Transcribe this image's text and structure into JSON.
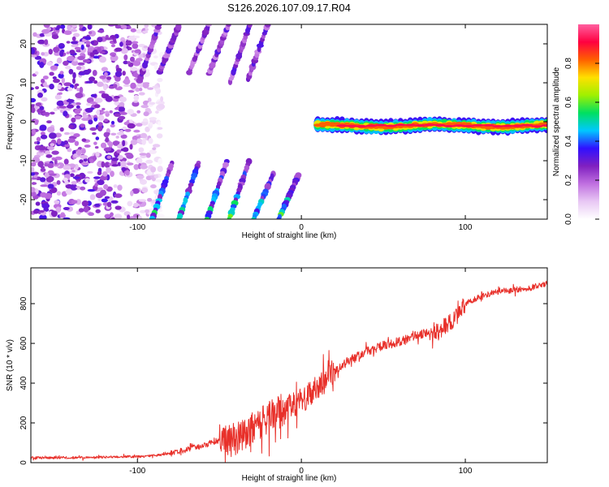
{
  "title": "S126.2026.107.09.17.R04",
  "chart_data": [
    {
      "type": "heatmap",
      "xlabel": "Height of straight line (km)",
      "ylabel": "Frequency (Hz)",
      "xlim": [
        -165,
        150
      ],
      "ylim": [
        -25,
        25
      ],
      "x_ticks": [
        -100,
        0,
        100
      ],
      "y_ticks": [
        -20,
        -10,
        0,
        10,
        20
      ],
      "colorbar": {
        "label": "Normalized spectral amplitude",
        "range": [
          0,
          1
        ],
        "ticks": [
          "0.0",
          "0.2",
          "0.4",
          "0.6",
          "0.8"
        ],
        "tick_values": [
          0,
          0.2,
          0.4,
          0.6,
          0.8
        ],
        "colors": [
          "#ffffff",
          "#e8c8f4",
          "#c070e0",
          "#8020c0",
          "#3010ff",
          "#00c8ff",
          "#00e060",
          "#a0f000",
          "#ffe000",
          "#ff6000",
          "#ff0040",
          "#ff60a0"
        ]
      },
      "features": [
        {
          "description": "scattered low-amplitude noise",
          "x_range": [
            -165,
            -85
          ],
          "freq_range": [
            -25,
            25
          ],
          "amplitude": 0.15
        },
        {
          "description": "strong ridge near 0 Hz",
          "x_range": [
            10,
            150
          ],
          "freq_center": -1,
          "amplitude": 0.85
        },
        {
          "description": "diagonal streaks, upper band",
          "x_range": [
            -100,
            -20
          ],
          "freq_range": [
            10,
            25
          ],
          "amplitude": 0.3
        },
        {
          "description": "diagonal streaks, lower band",
          "x_range": [
            -85,
            10
          ],
          "freq_range": [
            -25,
            -10
          ],
          "amplitude": 0.5
        }
      ]
    },
    {
      "type": "line",
      "xlabel": "Height of straight line (km)",
      "ylabel": "SNR (10 * v/v)",
      "xlim": [
        -165,
        150
      ],
      "ylim": [
        0,
        980
      ],
      "x_ticks": [
        -100,
        0,
        100
      ],
      "y_ticks": [
        0,
        200,
        400,
        600,
        800
      ],
      "color": "#e8302a",
      "series": [
        {
          "x": [
            -165,
            -150,
            -130,
            -110,
            -100,
            -90,
            -80,
            -70,
            -60,
            -50,
            -45,
            -40,
            -30,
            -20,
            -15,
            -10,
            0,
            10,
            20,
            30,
            40,
            50,
            60,
            70,
            80,
            85,
            90,
            95,
            100,
            110,
            120,
            130,
            140,
            150
          ],
          "y": [
            25,
            25,
            25,
            30,
            30,
            35,
            45,
            65,
            85,
            115,
            110,
            120,
            170,
            230,
            250,
            270,
            310,
            380,
            460,
            520,
            560,
            590,
            610,
            640,
            660,
            670,
            700,
            740,
            800,
            840,
            860,
            870,
            880,
            905
          ]
        }
      ]
    }
  ]
}
